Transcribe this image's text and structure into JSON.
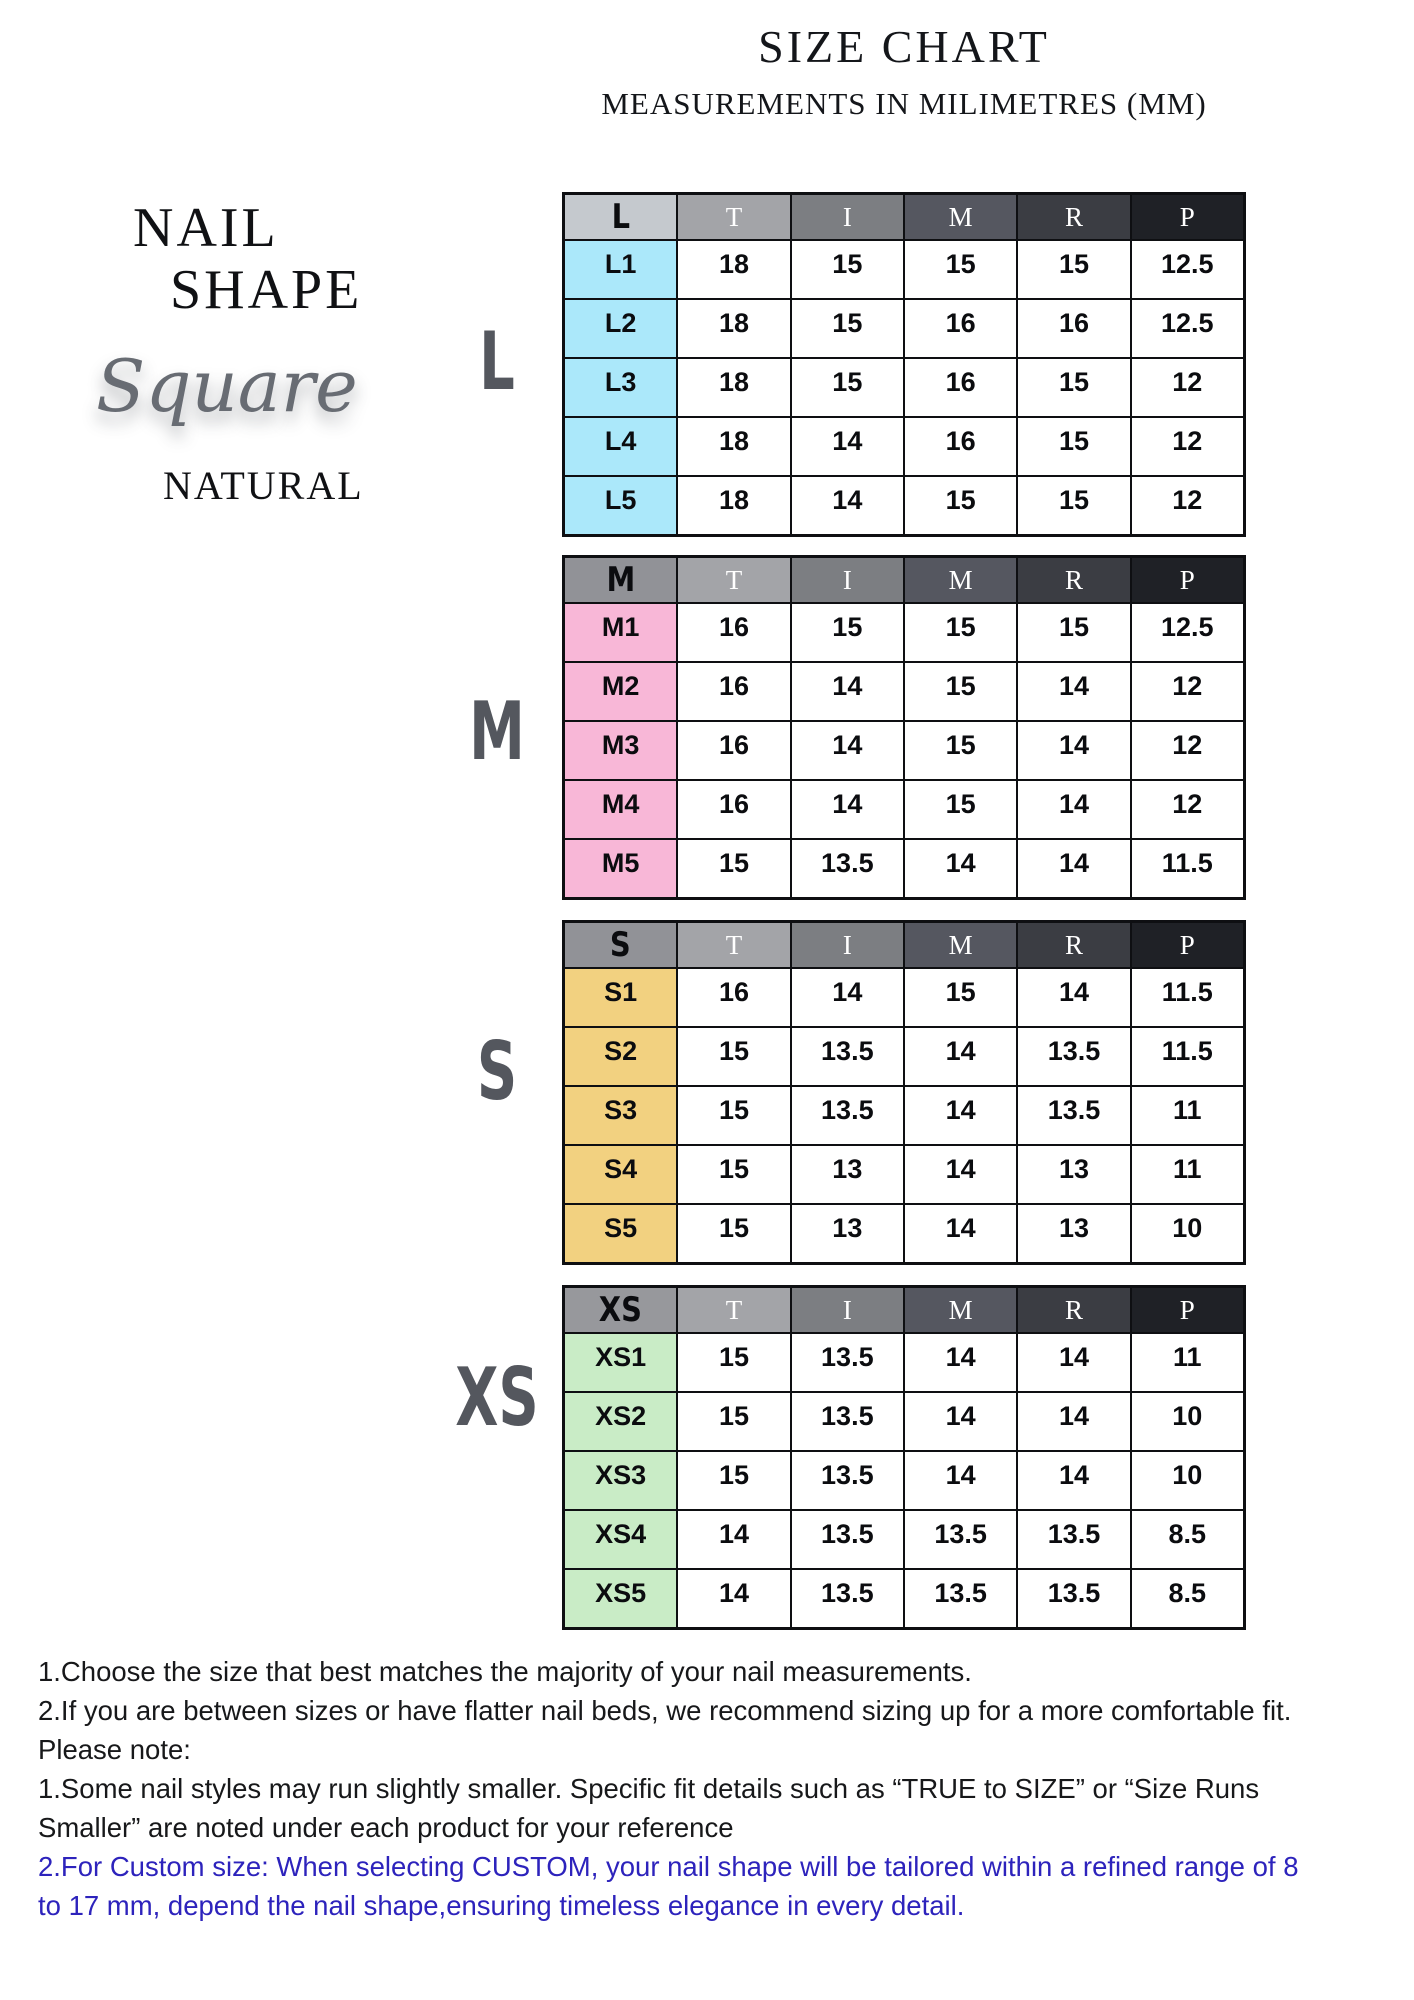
{
  "page": {
    "title": "SIZE CHART",
    "subtitle": "MEASUREMENTS IN MILIMETRES (MM)"
  },
  "branding": {
    "line1": "NAIL",
    "line2": "SHAPE",
    "shape_style": "Square",
    "finish": "NATURAL"
  },
  "measure_columns": [
    "T",
    "I",
    "M",
    "R",
    "P"
  ],
  "tables": [
    {
      "group": "L",
      "big_letter": "L",
      "group_header_bg": "#c5c9ce",
      "label_bg": "#abe8fa",
      "rows": [
        {
          "label": "L1",
          "values": [
            "18",
            "15",
            "15",
            "15",
            "12.5"
          ]
        },
        {
          "label": "L2",
          "values": [
            "18",
            "15",
            "16",
            "16",
            "12.5"
          ]
        },
        {
          "label": "L3",
          "values": [
            "18",
            "15",
            "16",
            "15",
            "12"
          ]
        },
        {
          "label": "L4",
          "values": [
            "18",
            "14",
            "16",
            "15",
            "12"
          ]
        },
        {
          "label": "L5",
          "values": [
            "18",
            "14",
            "15",
            "15",
            "12"
          ]
        }
      ]
    },
    {
      "group": "M",
      "big_letter": "M",
      "group_header_bg": "#919297",
      "label_bg": "#f8b7d7",
      "rows": [
        {
          "label": "M1",
          "values": [
            "16",
            "15",
            "15",
            "15",
            "12.5"
          ]
        },
        {
          "label": "M2",
          "values": [
            "16",
            "14",
            "15",
            "14",
            "12"
          ]
        },
        {
          "label": "M3",
          "values": [
            "16",
            "14",
            "15",
            "14",
            "12"
          ]
        },
        {
          "label": "M4",
          "values": [
            "16",
            "14",
            "15",
            "14",
            "12"
          ]
        },
        {
          "label": "M5",
          "values": [
            "15",
            "13.5",
            "14",
            "14",
            "11.5"
          ]
        }
      ]
    },
    {
      "group": "S",
      "big_letter": "S",
      "group_header_bg": "#919297",
      "label_bg": "#f2d180",
      "rows": [
        {
          "label": "S1",
          "values": [
            "16",
            "14",
            "15",
            "14",
            "11.5"
          ]
        },
        {
          "label": "S2",
          "values": [
            "15",
            "13.5",
            "14",
            "13.5",
            "11.5"
          ]
        },
        {
          "label": "S3",
          "values": [
            "15",
            "13.5",
            "14",
            "13.5",
            "11"
          ]
        },
        {
          "label": "S4",
          "values": [
            "15",
            "13",
            "14",
            "13",
            "11"
          ]
        },
        {
          "label": "S5",
          "values": [
            "15",
            "13",
            "14",
            "13",
            "10"
          ]
        }
      ]
    },
    {
      "group": "XS",
      "big_letter": "XS",
      "group_header_bg": "#97989c",
      "label_bg": "#c9ecc6",
      "rows": [
        {
          "label": "XS1",
          "values": [
            "15",
            "13.5",
            "14",
            "14",
            "11"
          ]
        },
        {
          "label": "XS2",
          "values": [
            "15",
            "13.5",
            "14",
            "14",
            "10"
          ]
        },
        {
          "label": "XS3",
          "values": [
            "15",
            "13.5",
            "14",
            "14",
            "10"
          ]
        },
        {
          "label": "XS4",
          "values": [
            "14",
            "13.5",
            "13.5",
            "13.5",
            "8.5"
          ]
        },
        {
          "label": "XS5",
          "values": [
            "14",
            "13.5",
            "13.5",
            "13.5",
            "8.5"
          ]
        }
      ]
    }
  ],
  "notes": [
    {
      "text": "1.Choose the size that best matches the majority of your nail measurements."
    },
    {
      "text": "2.If you are between sizes or have flatter nail beds, we recommend sizing up for a more comfortable fit."
    },
    {
      "text": "Please note:"
    },
    {
      "text": "1.Some nail styles may run slightly smaller. Specific fit details such as “TRUE to SIZE” or “Size Runs"
    },
    {
      "text": "Smaller” are noted under each product for your reference"
    },
    {
      "text": "2.For Custom size: When selecting CUSTOM, your nail shape will be tailored within a refined range of 8",
      "color": "#2d23bc"
    },
    {
      "text": "to 17 mm, depend the nail shape,ensuring timeless elegance in every detail.",
      "color": "#2d23bc"
    }
  ],
  "colors": {
    "column_header_bgs": [
      "#a3a4a8",
      "#7c7e82",
      "#555760",
      "#3b3d43",
      "#1f2126"
    ],
    "column_header_text": "#ffffff",
    "grid_border": "#0e0f12",
    "big_letter": "#54575e",
    "accent_blue": "#2d23bc"
  }
}
